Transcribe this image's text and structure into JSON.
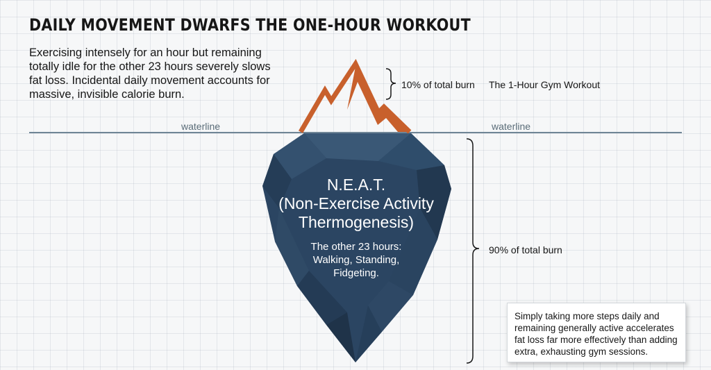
{
  "title": "DAILY MOVEMENT DWARFS THE ONE-HOUR WORKOUT",
  "intro_lines": [
    "Exercising intensely for an hour but remaining",
    "totally idle for the other 23 hours severely slows",
    "fat loss. Incidental daily movement accounts for",
    "massive, invisible calorie burn."
  ],
  "waterline": {
    "left_label": "waterline",
    "right_label": "waterline",
    "color": "#6f8596"
  },
  "tip": {
    "share_label": "10% of total burn",
    "name_label": "The 1-Hour Gym Workout",
    "color": "#c8602c"
  },
  "iceberg": {
    "title_lines": [
      "N.E.A.T.",
      "(Non-Exercise Activity",
      "Thermogenesis)"
    ],
    "sub_lines": [
      "The other 23 hours:",
      "Walking, Standing,",
      "Fidgeting."
    ],
    "share_label": "90% of total burn",
    "color": "#2b4562"
  },
  "callout_lines": [
    "Simply taking more steps daily and",
    "remaining generally active accelerates",
    "fat loss far more effectively than adding",
    "extra, exhausting gym sessions."
  ]
}
